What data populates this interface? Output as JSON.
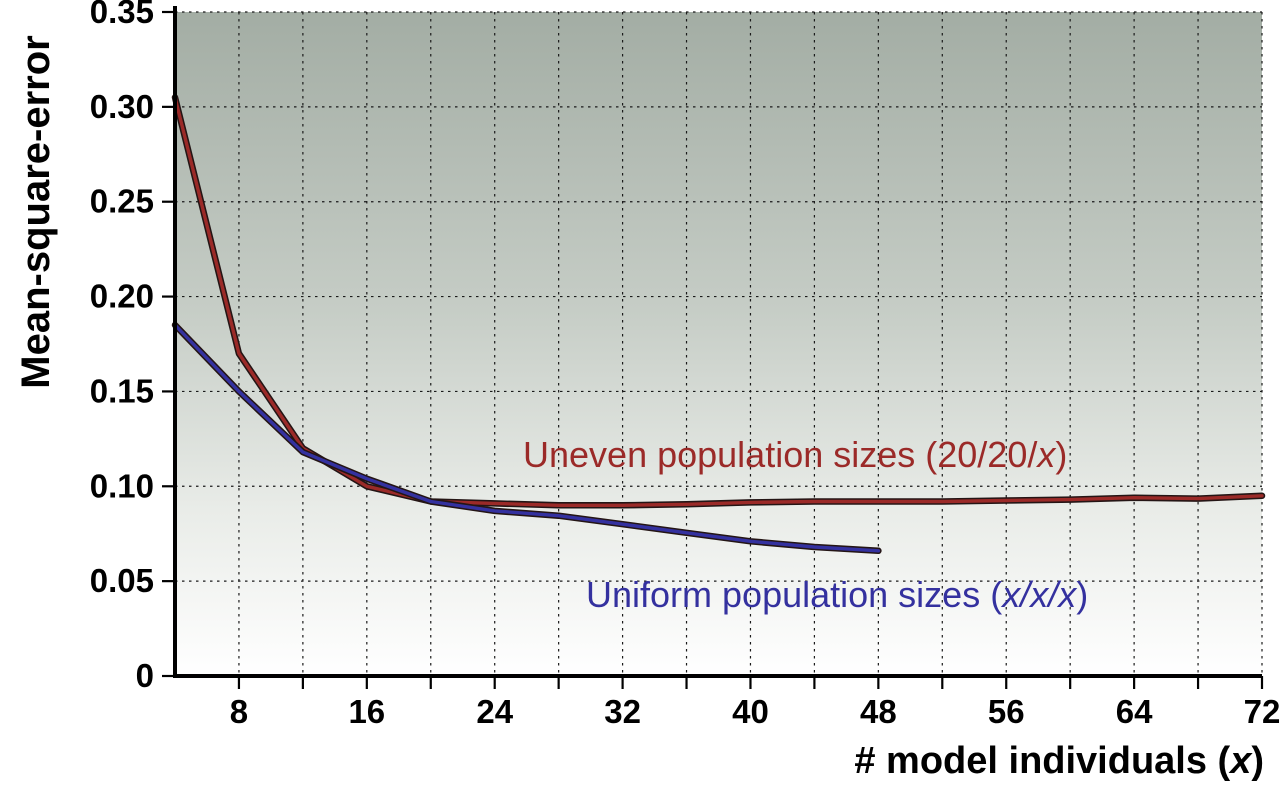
{
  "chart_data": {
    "type": "line",
    "title": "",
    "ylabel": "Mean-square-error",
    "xlabel_parts": {
      "prefix": "# model individuals (",
      "italic": "x",
      "suffix": ")"
    },
    "xlim": [
      4,
      72
    ],
    "ylim": [
      0,
      0.35
    ],
    "x_ticks_labeled": [
      8,
      16,
      24,
      32,
      40,
      48,
      56,
      64,
      72
    ],
    "x_grid_step": 4,
    "y_ticks": [
      0,
      0.05,
      0.1,
      0.15,
      0.2,
      0.25,
      0.3,
      0.35
    ],
    "y_tick_labels": [
      "0",
      "0.05",
      "0.10",
      "0.15",
      "0.20",
      "0.25",
      "0.30",
      "0.35"
    ],
    "grid": true,
    "grid_style": "dashed",
    "legend_position": "inline-annotations",
    "background_gradient": [
      {
        "offset": 0.0,
        "color": "#a3ada4"
      },
      {
        "offset": 0.45,
        "color": "#c6cdc6"
      },
      {
        "offset": 0.75,
        "color": "#e9ece8"
      },
      {
        "offset": 1.0,
        "color": "#ffffff"
      }
    ],
    "series": [
      {
        "name": "Uneven population sizes (20/20/x)",
        "color": "#9b2a28",
        "label_parts": {
          "prefix": "Uneven population sizes (20/20/",
          "italic": "x",
          "suffix": ")"
        },
        "x": [
          4,
          8,
          12,
          16,
          20,
          24,
          28,
          32,
          36,
          40,
          44,
          48,
          52,
          56,
          60,
          64,
          68,
          72
        ],
        "values": [
          0.305,
          0.17,
          0.12,
          0.1,
          0.092,
          0.091,
          0.09,
          0.09,
          0.0905,
          0.0915,
          0.092,
          0.092,
          0.092,
          0.0925,
          0.093,
          0.094,
          0.0935,
          0.095
        ]
      },
      {
        "name": "Uniform population sizes (x/x/x)",
        "color": "#34319f",
        "label_parts": {
          "prefix": "Uniform population sizes (",
          "italic": "x/x/x",
          "suffix": ")"
        },
        "x": [
          4,
          8,
          12,
          16,
          20,
          24,
          28,
          32,
          36,
          40,
          44,
          48
        ],
        "values": [
          0.185,
          0.15,
          0.118,
          0.104,
          0.092,
          0.087,
          0.0845,
          0.08,
          0.0755,
          0.071,
          0.068,
          0.066
        ]
      }
    ]
  }
}
